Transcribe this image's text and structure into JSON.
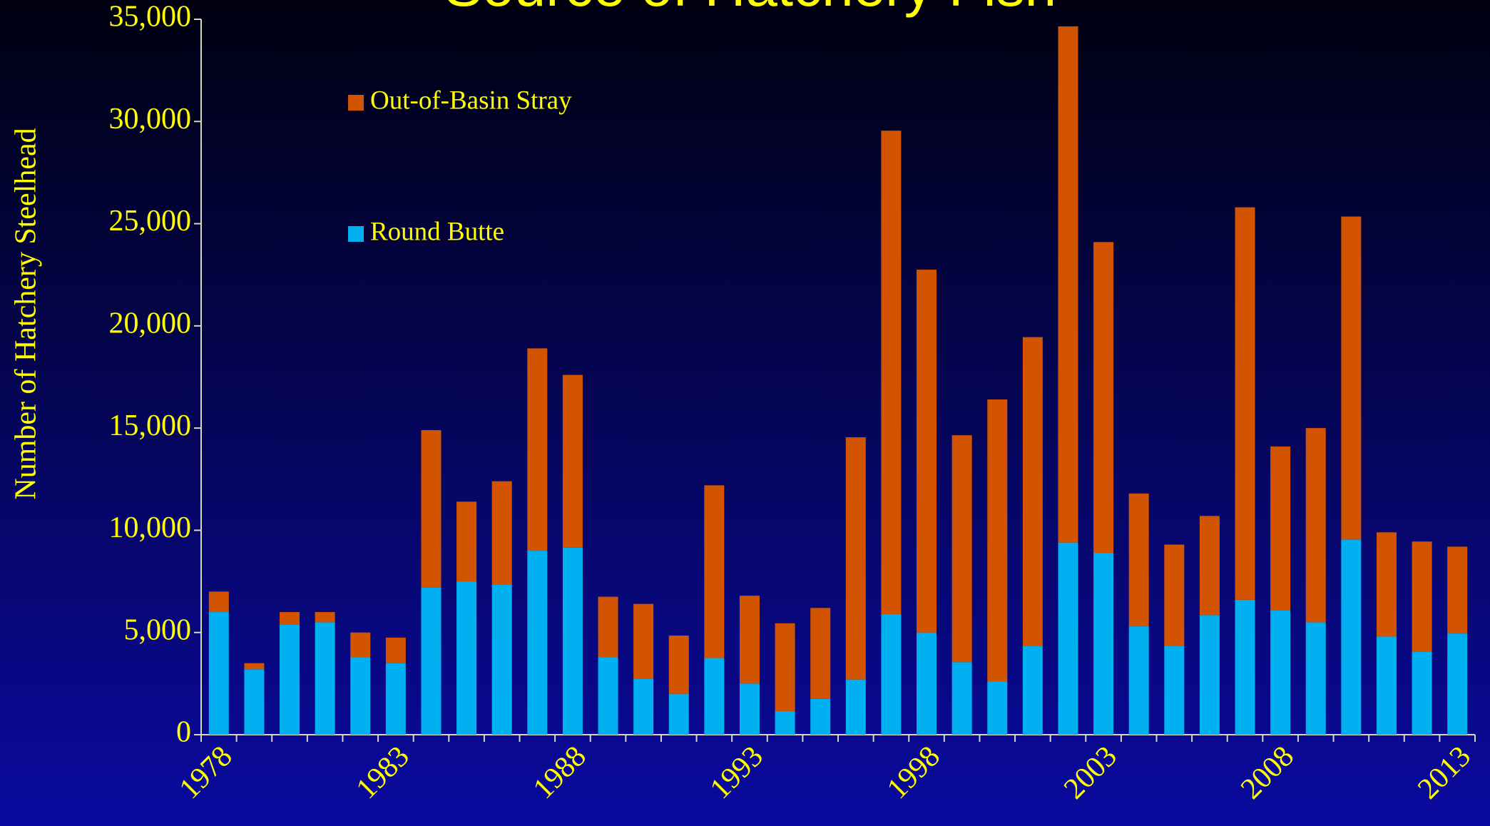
{
  "chart_data": {
    "type": "stacked_bar",
    "title": "Source of Hatchery Fish",
    "y_label": "Number of Hatchery Steelhead",
    "categories": [
      "1978",
      null,
      null,
      null,
      null,
      "1983",
      null,
      null,
      null,
      null,
      "1988",
      null,
      null,
      null,
      null,
      "1993",
      null,
      null,
      null,
      null,
      "1998",
      null,
      null,
      null,
      null,
      "2003",
      null,
      null,
      null,
      null,
      "2008",
      null,
      null,
      null,
      null,
      "2013"
    ],
    "series": [
      {
        "name": "Round Butte",
        "color": "#00b0f0",
        "values": [
          6000,
          3200,
          5400,
          5500,
          3800,
          3500,
          7200,
          7500,
          7350,
          9000,
          9150,
          3800,
          2750,
          2000,
          3750,
          2500,
          1150,
          1750,
          2700,
          5900,
          5000,
          3550,
          2600,
          4350,
          9400,
          8900,
          5300,
          4350,
          5850,
          6600,
          6100,
          5500,
          9550,
          4800,
          4050,
          4950
        ]
      },
      {
        "name": "Out-of-Basin Stray",
        "color": "#d35400",
        "values": [
          1000,
          300,
          600,
          500,
          1200,
          1250,
          7700,
          3900,
          5050,
          9900,
          8450,
          2950,
          3650,
          2850,
          8450,
          4300,
          4300,
          4450,
          11850,
          23650,
          17750,
          11100,
          13800,
          15100,
          25250,
          15200,
          6500,
          4950,
          4850,
          19200,
          8000,
          9500,
          15800,
          5100,
          5400,
          4250
        ]
      }
    ],
    "ylim": [
      0,
      35000
    ],
    "yticks": [
      0,
      {
        "value": 5000,
        "label": "5,000"
      },
      {
        "value": 10000,
        "label": "10,000"
      },
      {
        "value": 15000,
        "label": "15,000"
      },
      {
        "value": 20000,
        "label": "20,000"
      },
      {
        "value": 25000,
        "label": "25,000"
      },
      {
        "value": 30000,
        "label": "30,000"
      },
      {
        "value": 35000,
        "label": "35,000"
      }
    ]
  }
}
